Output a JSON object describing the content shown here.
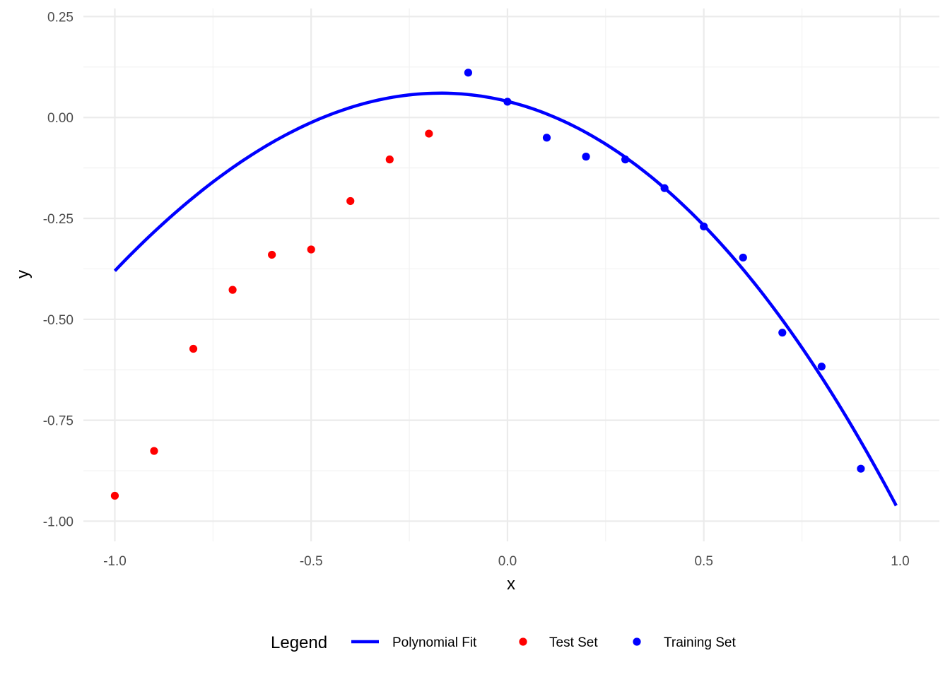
{
  "chart_data": {
    "type": "scatter",
    "xlabel": "x",
    "ylabel": "y",
    "xlim": [
      -1.08,
      1.1
    ],
    "ylim": [
      -1.05,
      0.27
    ],
    "x_ticks": [
      -1.0,
      -0.5,
      0.0,
      0.5,
      1.0
    ],
    "x_tick_labels": [
      "-1.0",
      "-0.5",
      "0.0",
      "0.5",
      "1.0"
    ],
    "y_ticks": [
      0.25,
      0.0,
      -0.25,
      -0.5,
      -0.75,
      -1.0
    ],
    "y_tick_labels": [
      "0.25",
      "0.00",
      "-0.25",
      "-0.50",
      "-0.75",
      "-1.00"
    ],
    "grid": true,
    "legend_placement": "bottom",
    "legend": {
      "title": "Legend",
      "entries": [
        {
          "label": "Polynomial Fit",
          "kind": "line",
          "color": "#0000ff"
        },
        {
          "label": "Test Set",
          "kind": "point",
          "color": "#ff0000"
        },
        {
          "label": "Training Set",
          "kind": "point",
          "color": "#0000ff"
        }
      ]
    },
    "series": [
      {
        "name": "Polynomial Fit",
        "kind": "line",
        "color": "#0000ff",
        "coefficients": [
          0.04,
          -0.24,
          -0.72,
          -0.06
        ],
        "x_range": [
          -1.0,
          0.99
        ]
      },
      {
        "name": "Test Set",
        "kind": "point",
        "color": "#ff0000",
        "points": [
          {
            "x": -1.0,
            "y": -0.937
          },
          {
            "x": -0.9,
            "y": -0.826
          },
          {
            "x": -0.8,
            "y": -0.573
          },
          {
            "x": -0.7,
            "y": -0.427
          },
          {
            "x": -0.6,
            "y": -0.34
          },
          {
            "x": -0.5,
            "y": -0.327
          },
          {
            "x": -0.4,
            "y": -0.207
          },
          {
            "x": -0.3,
            "y": -0.104
          },
          {
            "x": -0.2,
            "y": -0.04
          }
        ]
      },
      {
        "name": "Training Set",
        "kind": "point",
        "color": "#0000ff",
        "points": [
          {
            "x": -0.1,
            "y": 0.111
          },
          {
            "x": 0.0,
            "y": 0.039
          },
          {
            "x": 0.1,
            "y": -0.05
          },
          {
            "x": 0.2,
            "y": -0.097
          },
          {
            "x": 0.3,
            "y": -0.104
          },
          {
            "x": 0.4,
            "y": -0.175
          },
          {
            "x": 0.5,
            "y": -0.27
          },
          {
            "x": 0.6,
            "y": -0.347
          },
          {
            "x": 0.7,
            "y": -0.533
          },
          {
            "x": 0.8,
            "y": -0.617
          },
          {
            "x": 0.9,
            "y": -0.87
          }
        ]
      }
    ]
  }
}
